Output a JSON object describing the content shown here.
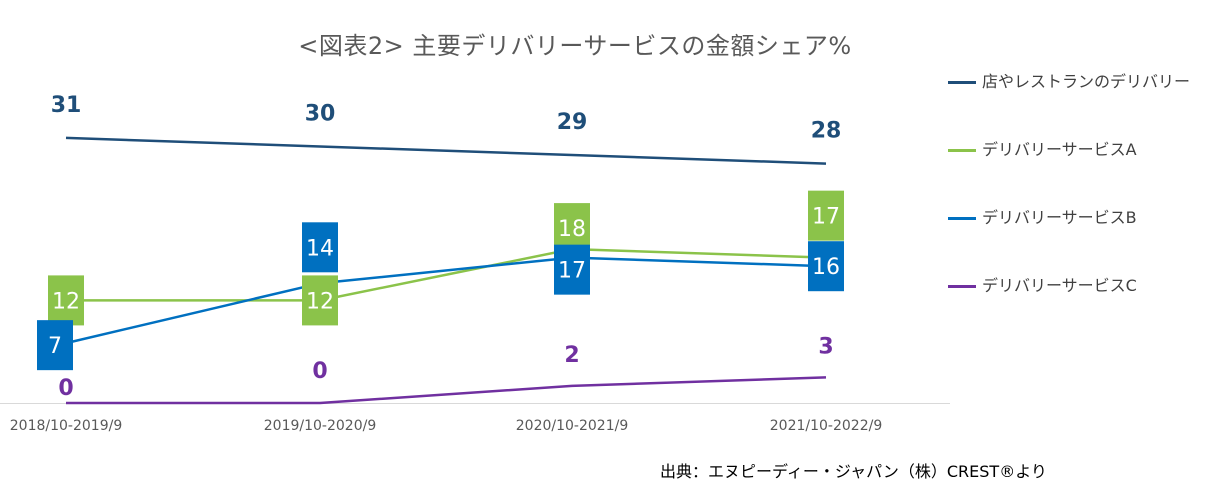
{
  "title": "<図表2> 主要デリバリーサービスの金額シェア%",
  "source": "出典：エヌピーディー・ジャパン（株）CREST®より",
  "colors": {
    "series1": "#1F4E79",
    "series2": "#8BC34A",
    "series3": "#0070C0",
    "series4": "#7030A0",
    "axis": "#D9D9D9",
    "text": "#595959"
  },
  "chart_data": {
    "type": "line",
    "title": "<図表2> 主要デリバリーサービスの金額シェア%",
    "xlabel": "",
    "ylabel": "",
    "categories": [
      "2018/10-2019/9",
      "2019/10-2020/9",
      "2020/10-2021/9",
      "2021/10-2022/9"
    ],
    "ylim": [
      0,
      31
    ],
    "grid": false,
    "legend_position": "right",
    "series": [
      {
        "name": "店やレストランのデリバリー",
        "values": [
          31,
          30,
          29,
          28
        ],
        "color": "#1F4E79",
        "label_style": "text"
      },
      {
        "name": "デリバリーサービスA",
        "values": [
          12,
          12,
          18,
          17
        ],
        "color": "#8BC34A",
        "label_style": "box"
      },
      {
        "name": "デリバリーサービスB",
        "values": [
          7,
          14,
          17,
          16
        ],
        "color": "#0070C0",
        "label_style": "box"
      },
      {
        "name": "デリバリーサービスC",
        "values": [
          0,
          0,
          2,
          3
        ],
        "color": "#7030A0",
        "label_style": "text"
      }
    ]
  }
}
